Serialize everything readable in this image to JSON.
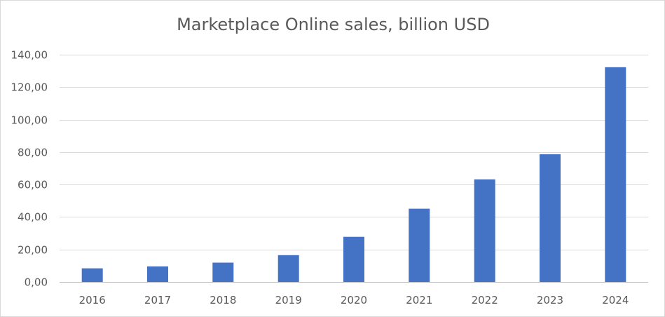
{
  "chart_data": {
    "type": "bar",
    "title": "Marketplace Online sales, billion USD",
    "categories": [
      "2016",
      "2017",
      "2018",
      "2019",
      "2020",
      "2021",
      "2022",
      "2023",
      "2024"
    ],
    "values": [
      8.4,
      9.6,
      11.9,
      16.5,
      27.8,
      45.1,
      63.2,
      78.7,
      132.3
    ],
    "ylim": [
      0,
      140
    ],
    "yticks": [
      0,
      20,
      40,
      60,
      80,
      100,
      120,
      140
    ],
    "ytick_labels": [
      "0,00",
      "20,00",
      "40,00",
      "60,00",
      "80,00",
      "100,00",
      "120,00",
      "140,00"
    ],
    "xlabel": "",
    "ylabel": "",
    "grid": true,
    "legend": "none",
    "bar_color": "#4472c4"
  }
}
